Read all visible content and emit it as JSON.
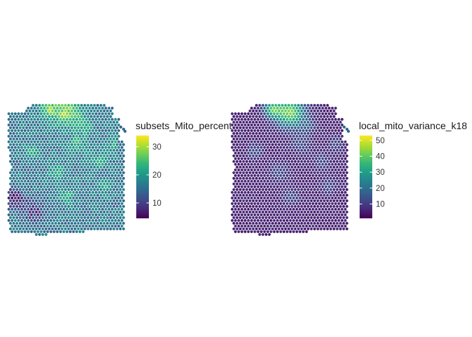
{
  "colormap": {
    "name": "viridis",
    "stops": [
      "#440154",
      "#482878",
      "#3e4a89",
      "#31688e",
      "#26828e",
      "#1f9e89",
      "#35b779",
      "#6ece58",
      "#b5de2b",
      "#fde725"
    ]
  },
  "chart_data": [
    {
      "type": "heatmap",
      "subtype": "spatial-spot-map",
      "legend": {
        "title": "subsets_Mito_percent",
        "range": [
          4.5,
          34
        ],
        "ticks": [
          10,
          20,
          30
        ],
        "tick_labels": [
          "10",
          "20",
          "30"
        ]
      },
      "pattern": {
        "baseline": 16,
        "noise": 6,
        "high_band_top_value": 32,
        "low_pocket_bottom_left": 6,
        "patchy_highs": 24
      }
    },
    {
      "type": "heatmap",
      "subtype": "spatial-spot-map",
      "legend": {
        "title": "local_mito_variance_k18",
        "range": [
          1,
          53
        ],
        "ticks": [
          10,
          20,
          30,
          40,
          50
        ],
        "tick_labels": [
          "10",
          "20",
          "30",
          "40",
          "50"
        ]
      },
      "pattern": {
        "baseline": 6,
        "noise": 3,
        "high_band_top_value": 52,
        "patchy_highs": 16
      }
    }
  ]
}
